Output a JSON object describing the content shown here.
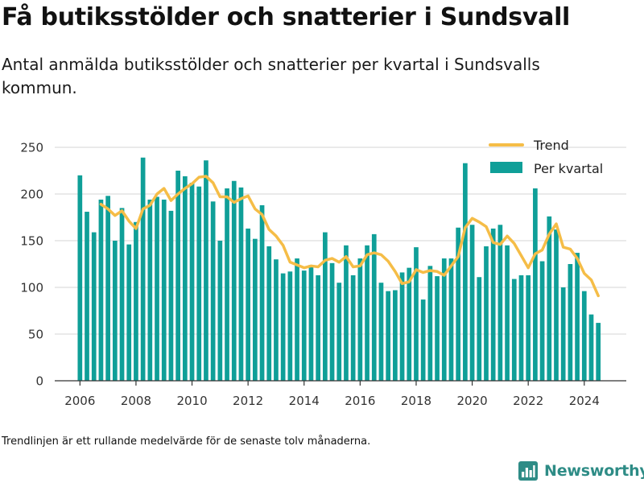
{
  "title": "Få butiksstölder och snatterier i Sundsvall",
  "subtitle": "Antal anmälda butiksstölder och snatterier per kvartal i Sundsvalls kommun.",
  "note": "Trendlinjen är ett rullande medelvärde för de senaste tolv månaderna.",
  "brand": {
    "name": "Newsworthy",
    "logo_icon": "newsworthy-bar-chart-logo-icon"
  },
  "colors": {
    "bars": "#0f9f98",
    "trend": "#f5bd47",
    "grid": "#dedede",
    "axis": "#333333",
    "brand": "#2e8c86"
  },
  "chart_data": {
    "type": "bar",
    "xlim": [
      2005.1,
      2025.5
    ],
    "ylim": [
      0,
      250
    ],
    "yticks": [
      0,
      50,
      100,
      150,
      200,
      250
    ],
    "xticks": [
      2006,
      2008,
      2010,
      2012,
      2014,
      2016,
      2018,
      2020,
      2022,
      2024
    ],
    "grid": true,
    "legend_position": "top-right",
    "x": [
      2006.0,
      2006.25,
      2006.5,
      2006.75,
      2007.0,
      2007.25,
      2007.5,
      2007.75,
      2008.0,
      2008.25,
      2008.5,
      2008.75,
      2009.0,
      2009.25,
      2009.5,
      2009.75,
      2010.0,
      2010.25,
      2010.5,
      2010.75,
      2011.0,
      2011.25,
      2011.5,
      2011.75,
      2012.0,
      2012.25,
      2012.5,
      2012.75,
      2013.0,
      2013.25,
      2013.5,
      2013.75,
      2014.0,
      2014.25,
      2014.5,
      2014.75,
      2015.0,
      2015.25,
      2015.5,
      2015.75,
      2016.0,
      2016.25,
      2016.5,
      2016.75,
      2017.0,
      2017.25,
      2017.5,
      2017.75,
      2018.0,
      2018.25,
      2018.5,
      2018.75,
      2019.0,
      2019.25,
      2019.5,
      2019.75,
      2020.0,
      2020.25,
      2020.5,
      2020.75,
      2021.0,
      2021.25,
      2021.5,
      2021.75,
      2022.0,
      2022.25,
      2022.5,
      2022.75,
      2023.0,
      2023.25,
      2023.5,
      2023.75,
      2024.0,
      2024.25,
      2024.5
    ],
    "series": [
      {
        "name": "Per kvartal",
        "type": "bar",
        "values": [
          220,
          181,
          159,
          194,
          198,
          150,
          185,
          146,
          170,
          239,
          194,
          197,
          194,
          182,
          225,
          219,
          212,
          208,
          236,
          192,
          150,
          206,
          214,
          207,
          163,
          152,
          188,
          144,
          130,
          115,
          117,
          131,
          118,
          124,
          113,
          159,
          126,
          105,
          145,
          113,
          131,
          145,
          157,
          105,
          96,
          97,
          116,
          121,
          143,
          87,
          123,
          112,
          131,
          131,
          164,
          233,
          167,
          111,
          144,
          163,
          167,
          145,
          109,
          113,
          113,
          206,
          128,
          176,
          162,
          100,
          125,
          137,
          96,
          71,
          62
        ]
      },
      {
        "name": "Trend",
        "type": "line",
        "x": [
          2006.75,
          2007.0,
          2007.25,
          2007.5,
          2007.75,
          2008.0,
          2008.25,
          2008.5,
          2008.75,
          2009.0,
          2009.25,
          2009.5,
          2009.75,
          2010.0,
          2010.25,
          2010.5,
          2010.75,
          2011.0,
          2011.25,
          2011.5,
          2011.75,
          2012.0,
          2012.25,
          2012.5,
          2012.75,
          2013.0,
          2013.25,
          2013.5,
          2013.75,
          2014.0,
          2014.25,
          2014.5,
          2014.75,
          2015.0,
          2015.25,
          2015.5,
          2015.75,
          2016.0,
          2016.25,
          2016.5,
          2016.75,
          2017.0,
          2017.25,
          2017.5,
          2017.75,
          2018.0,
          2018.25,
          2018.5,
          2018.75,
          2019.0,
          2019.25,
          2019.5,
          2019.75,
          2020.0,
          2020.25,
          2020.5,
          2020.75,
          2021.0,
          2021.25,
          2021.5,
          2021.75,
          2022.0,
          2022.25,
          2022.5,
          2022.75,
          2023.0,
          2023.25,
          2023.5,
          2023.75,
          2024.0,
          2024.25,
          2024.5
        ],
        "values": [
          189,
          184,
          177,
          182,
          171,
          163,
          184,
          188,
          200,
          206,
          193,
          200,
          206,
          211,
          218,
          219,
          212,
          197,
          197,
          191,
          195,
          198,
          184,
          178,
          162,
          155,
          145,
          127,
          124,
          121,
          123,
          122,
          129,
          131,
          127,
          133,
          122,
          123,
          135,
          137,
          135,
          128,
          117,
          104,
          106,
          119,
          116,
          118,
          117,
          113,
          123,
          133,
          164,
          174,
          170,
          165,
          148,
          146,
          155,
          147,
          134,
          121,
          136,
          140,
          157,
          168,
          143,
          141,
          131,
          115,
          108,
          91
        ]
      }
    ]
  }
}
